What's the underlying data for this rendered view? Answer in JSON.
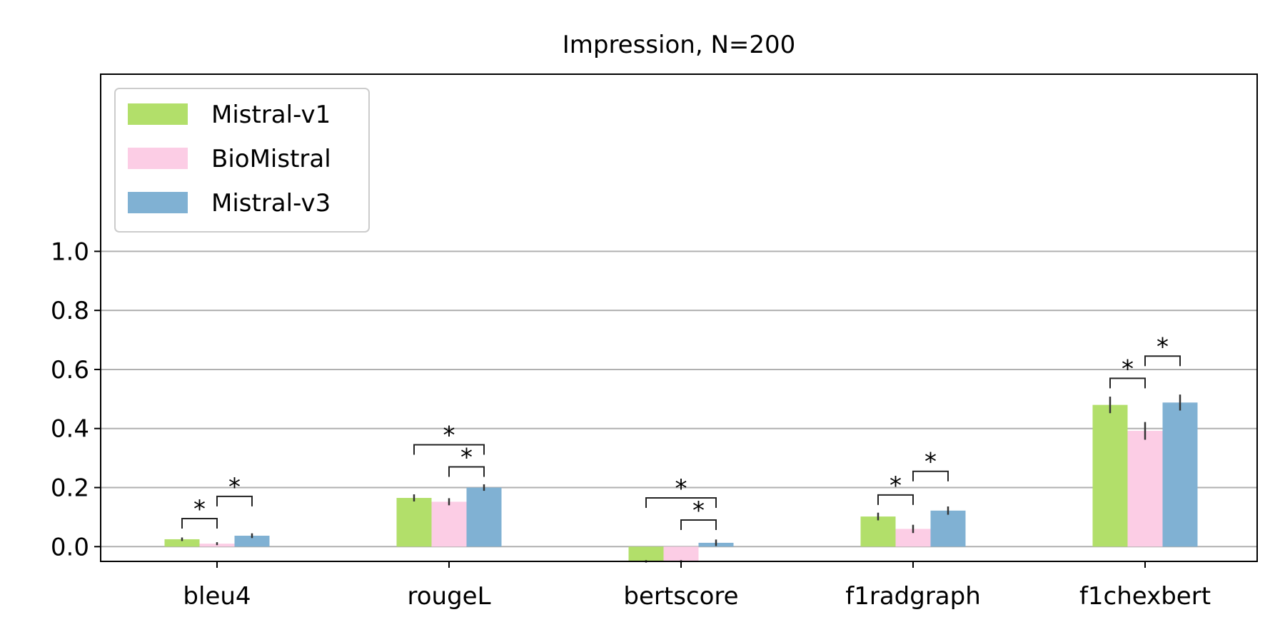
{
  "chart_data": {
    "type": "bar",
    "title": "Impression, N=200",
    "xlabel": "",
    "ylabel": "",
    "categories": [
      "bleu4",
      "rougeL",
      "bertscore",
      "f1radgraph",
      "f1chexbert"
    ],
    "ylim": [
      -0.05,
      1.6
    ],
    "yticks": [
      0.0,
      0.2,
      0.4,
      0.6,
      0.8,
      1.0
    ],
    "ytick_labels": [
      "0.0",
      "0.2",
      "0.4",
      "0.6",
      "0.8",
      "1.0"
    ],
    "grid": "horizontal",
    "legend_position": "upper-left",
    "series": [
      {
        "name": "Mistral-v1",
        "color": "#b2df6a",
        "values": [
          0.025,
          0.165,
          -0.05,
          0.102,
          0.48
        ],
        "err": [
          0.006,
          0.012,
          0.004,
          0.013,
          0.028
        ]
      },
      {
        "name": "BioMistral",
        "color": "#fccde5",
        "values": [
          0.01,
          0.152,
          -0.05,
          0.06,
          0.392
        ],
        "err": [
          0.005,
          0.012,
          0.004,
          0.014,
          0.03
        ]
      },
      {
        "name": "Mistral-v3",
        "color": "#80b1d3",
        "values": [
          0.037,
          0.2,
          0.013,
          0.122,
          0.488
        ],
        "err": [
          0.008,
          0.011,
          0.011,
          0.014,
          0.027
        ]
      }
    ],
    "significance": [
      {
        "category": 0,
        "from": 0,
        "to": 1,
        "y": 0.095,
        "label": "*"
      },
      {
        "category": 0,
        "from": 1,
        "to": 2,
        "y": 0.17,
        "label": "*"
      },
      {
        "category": 1,
        "from": 0,
        "to": 2,
        "y": 0.345,
        "label": "*"
      },
      {
        "category": 1,
        "from": 1,
        "to": 2,
        "y": 0.27,
        "label": "*"
      },
      {
        "category": 2,
        "from": 0,
        "to": 2,
        "y": 0.165,
        "label": "*"
      },
      {
        "category": 2,
        "from": 1,
        "to": 2,
        "y": 0.09,
        "label": "*"
      },
      {
        "category": 3,
        "from": 0,
        "to": 1,
        "y": 0.175,
        "label": "*"
      },
      {
        "category": 3,
        "from": 1,
        "to": 2,
        "y": 0.255,
        "label": "*"
      },
      {
        "category": 4,
        "from": 0,
        "to": 1,
        "y": 0.57,
        "label": "*"
      },
      {
        "category": 4,
        "from": 1,
        "to": 2,
        "y": 0.645,
        "label": "*"
      }
    ]
  }
}
